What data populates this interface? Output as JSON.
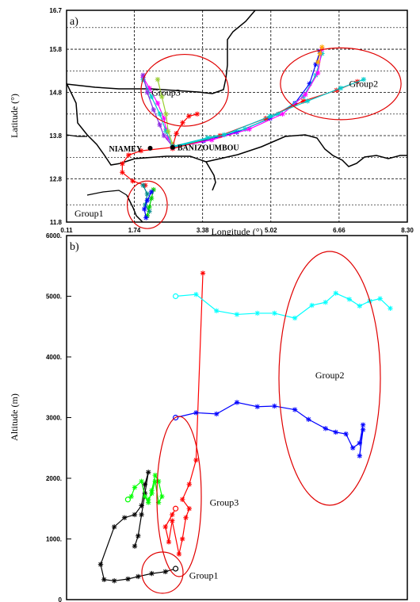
{
  "chart_data": [
    {
      "type": "line",
      "panel": "a)",
      "xlabel": "Longitude (°)",
      "ylabel": "Latitude (°)",
      "xlim": [
        0.11,
        8.3
      ],
      "ylim": [
        11.8,
        16.7
      ],
      "xticks": [
        "0.11",
        "1.74",
        "3.38",
        "5.02",
        "6.66",
        "8.30"
      ],
      "yticks": [
        "11.8",
        "12.8",
        "13.8",
        "14.8",
        "15.8",
        "16.7"
      ],
      "grid": "dashed",
      "cities": [
        {
          "name": "NIAMEY",
          "lon": 2.12,
          "lat": 13.51
        },
        {
          "name": "BANIZOUMBOU",
          "lon": 2.66,
          "lat": 13.53
        }
      ],
      "groups": [
        {
          "name": "Group1",
          "label_lon": 0.3,
          "label_lat": 12.0,
          "center": [
            2.05,
            12.2
          ],
          "rx": 0.48,
          "ry": 0.55
        },
        {
          "name": "Group2",
          "label_lon": 6.9,
          "label_lat": 15.0,
          "center": [
            6.7,
            15.0
          ],
          "rx": 1.45,
          "ry": 0.83
        },
        {
          "name": "Group3",
          "label_lon": 2.15,
          "label_lat": 14.8,
          "center": [
            2.95,
            14.85
          ],
          "rx": 1.05,
          "ry": 0.83
        }
      ],
      "series": [
        {
          "color": "#ff0000",
          "points": [
            [
              2.66,
              13.53
            ],
            [
              1.9,
              13.45
            ],
            [
              1.6,
              13.35
            ],
            [
              1.45,
              13.15
            ],
            [
              1.45,
              12.95
            ],
            [
              1.7,
              12.75
            ],
            [
              2.0,
              12.65
            ]
          ]
        },
        {
          "color": "#008b8b",
          "points": [
            [
              1.95,
              12.65
            ],
            [
              2.05,
              12.45
            ],
            [
              2.0,
              12.2
            ],
            [
              2.1,
              12.05
            ]
          ]
        },
        {
          "color": "#00cc00",
          "points": [
            [
              2.2,
              12.55
            ],
            [
              2.15,
              12.35
            ],
            [
              2.1,
              12.15
            ],
            [
              2.05,
              11.95
            ]
          ]
        },
        {
          "color": "#0000ff",
          "points": [
            [
              2.15,
              12.5
            ],
            [
              2.05,
              12.3
            ],
            [
              1.98,
              12.1
            ],
            [
              2.02,
              11.9
            ]
          ]
        },
        {
          "color": "#ff00ff",
          "points": [
            [
              2.66,
              13.55
            ],
            [
              2.55,
              13.75
            ],
            [
              2.5,
              13.95
            ],
            [
              2.45,
              14.2
            ],
            [
              2.3,
              14.55
            ],
            [
              2.1,
              14.9
            ],
            [
              1.95,
              15.15
            ]
          ]
        },
        {
          "color": "#00cccc",
          "points": [
            [
              2.66,
              13.55
            ],
            [
              2.5,
              13.9
            ],
            [
              2.35,
              14.3
            ],
            [
              2.15,
              14.7
            ],
            [
              1.95,
              15.1
            ]
          ]
        },
        {
          "color": "#8a2be2",
          "points": [
            [
              2.66,
              13.55
            ],
            [
              2.45,
              13.8
            ],
            [
              2.35,
              14.05
            ],
            [
              2.2,
              14.4
            ],
            [
              2.05,
              14.8
            ],
            [
              1.95,
              15.2
            ]
          ]
        },
        {
          "color": "#9acd32",
          "points": [
            [
              2.66,
              13.6
            ],
            [
              2.55,
              13.9
            ],
            [
              2.5,
              14.3
            ],
            [
              2.4,
              14.7
            ],
            [
              2.3,
              15.1
            ]
          ]
        },
        {
          "color": "#ff0000",
          "points": [
            [
              2.66,
              13.55
            ],
            [
              2.75,
              13.85
            ],
            [
              2.9,
              14.1
            ],
            [
              3.05,
              14.25
            ],
            [
              3.25,
              14.3
            ]
          ]
        },
        {
          "color": "#0000ff",
          "points": [
            [
              2.66,
              13.55
            ],
            [
              3.4,
              13.68
            ],
            [
              4.2,
              13.88
            ],
            [
              5.0,
              14.2
            ],
            [
              5.6,
              14.55
            ],
            [
              5.95,
              15.0
            ],
            [
              6.1,
              15.45
            ],
            [
              6.2,
              15.75
            ]
          ]
        },
        {
          "color": "#00cccc",
          "points": [
            [
              2.66,
              13.55
            ],
            [
              3.5,
              13.75
            ],
            [
              4.4,
              13.95
            ],
            [
              5.2,
              14.3
            ],
            [
              5.8,
              14.7
            ],
            [
              6.1,
              15.2
            ],
            [
              6.25,
              15.7
            ]
          ]
        },
        {
          "color": "#ff00ff",
          "points": [
            [
              2.66,
              13.52
            ],
            [
              3.6,
              13.7
            ],
            [
              4.5,
              13.95
            ],
            [
              5.3,
              14.3
            ],
            [
              5.85,
              14.75
            ],
            [
              6.15,
              15.25
            ],
            [
              6.25,
              15.8
            ]
          ]
        },
        {
          "color": "#ff0000",
          "points": [
            [
              2.66,
              13.5
            ],
            [
              3.8,
              13.8
            ],
            [
              4.9,
              14.2
            ],
            [
              5.8,
              14.6
            ],
            [
              6.6,
              14.85
            ],
            [
              7.1,
              15.05
            ]
          ]
        },
        {
          "color": "#00cccc",
          "points": [
            [
              2.66,
              13.53
            ],
            [
              3.9,
              13.82
            ],
            [
              5.0,
              14.25
            ],
            [
              5.9,
              14.6
            ],
            [
              6.7,
              14.9
            ],
            [
              7.25,
              15.1
            ]
          ]
        },
        {
          "color": "#ffa500",
          "points": [
            [
              6.15,
              15.5
            ],
            [
              6.2,
              15.7
            ],
            [
              6.25,
              15.85
            ]
          ]
        }
      ]
    },
    {
      "type": "line",
      "panel": "b)",
      "ylabel": "Altitude (m)",
      "ylim": [
        0,
        6000
      ],
      "yticks": [
        "0",
        "1000.",
        "2000.",
        "3000.",
        "4000.",
        "5000.",
        "6000."
      ],
      "groups": [
        {
          "name": "Group1",
          "label_x": 0.36,
          "label_y": 400
        },
        {
          "name": "Group2",
          "label_x": 0.73,
          "label_y": 3700
        },
        {
          "name": "Group3",
          "label_x": 0.42,
          "label_y": 1600
        }
      ],
      "series": [
        {
          "color": "#000000",
          "points": [
            [
              0.32,
              510
            ],
            [
              0.29,
              460
            ],
            [
              0.25,
              430
            ],
            [
              0.21,
              380
            ],
            [
              0.18,
              340
            ],
            [
              0.14,
              310
            ],
            [
              0.11,
              330
            ],
            [
              0.1,
              580
            ],
            [
              0.14,
              1200
            ],
            [
              0.17,
              1350
            ],
            [
              0.2,
              1400
            ],
            [
              0.22,
              1550
            ],
            [
              0.23,
              1900
            ],
            [
              0.24,
              2100
            ],
            [
              0.23,
              1750
            ],
            [
              0.22,
              1400
            ],
            [
              0.21,
              1050
            ],
            [
              0.2,
              880
            ]
          ]
        },
        {
          "color": "#00ff00",
          "points": [
            [
              0.18,
              1650
            ],
            [
              0.19,
              1700
            ],
            [
              0.2,
              1850
            ],
            [
              0.22,
              1950
            ],
            [
              0.23,
              1700
            ],
            [
              0.24,
              1600
            ],
            [
              0.25,
              1800
            ],
            [
              0.26,
              2050
            ],
            [
              0.27,
              1950
            ],
            [
              0.28,
              1700
            ],
            [
              0.27,
              1600
            ],
            [
              0.26,
              1950
            ],
            [
              0.25,
              1750
            ],
            [
              0.24,
              1650
            ]
          ]
        },
        {
          "color": "#ff0000",
          "points": [
            [
              0.32,
              1500
            ],
            [
              0.31,
              1400
            ],
            [
              0.29,
              1200
            ],
            [
              0.3,
              950
            ],
            [
              0.31,
              1300
            ],
            [
              0.33,
              750
            ],
            [
              0.34,
              1000
            ],
            [
              0.35,
              1350
            ],
            [
              0.36,
              1500
            ],
            [
              0.34,
              1650
            ],
            [
              0.36,
              1900
            ],
            [
              0.38,
              2300
            ],
            [
              0.4,
              5380
            ]
          ]
        },
        {
          "color": "#0000ff",
          "points": [
            [
              0.32,
              3000
            ],
            [
              0.38,
              3080
            ],
            [
              0.44,
              3060
            ],
            [
              0.5,
              3250
            ],
            [
              0.56,
              3180
            ],
            [
              0.61,
              3190
            ],
            [
              0.67,
              3130
            ],
            [
              0.71,
              2970
            ],
            [
              0.76,
              2820
            ],
            [
              0.79,
              2760
            ],
            [
              0.82,
              2730
            ],
            [
              0.84,
              2500
            ],
            [
              0.86,
              2580
            ],
            [
              0.87,
              2880
            ],
            [
              0.86,
              2370
            ],
            [
              0.87,
              2800
            ]
          ]
        },
        {
          "color": "#00ffff",
          "points": [
            [
              0.32,
              5000
            ],
            [
              0.38,
              5030
            ],
            [
              0.44,
              4760
            ],
            [
              0.5,
              4700
            ],
            [
              0.56,
              4720
            ],
            [
              0.61,
              4720
            ],
            [
              0.67,
              4640
            ],
            [
              0.72,
              4850
            ],
            [
              0.76,
              4900
            ],
            [
              0.79,
              5050
            ],
            [
              0.83,
              4950
            ],
            [
              0.86,
              4840
            ],
            [
              0.89,
              4920
            ],
            [
              0.92,
              4960
            ],
            [
              0.95,
              4800
            ]
          ]
        }
      ]
    }
  ]
}
